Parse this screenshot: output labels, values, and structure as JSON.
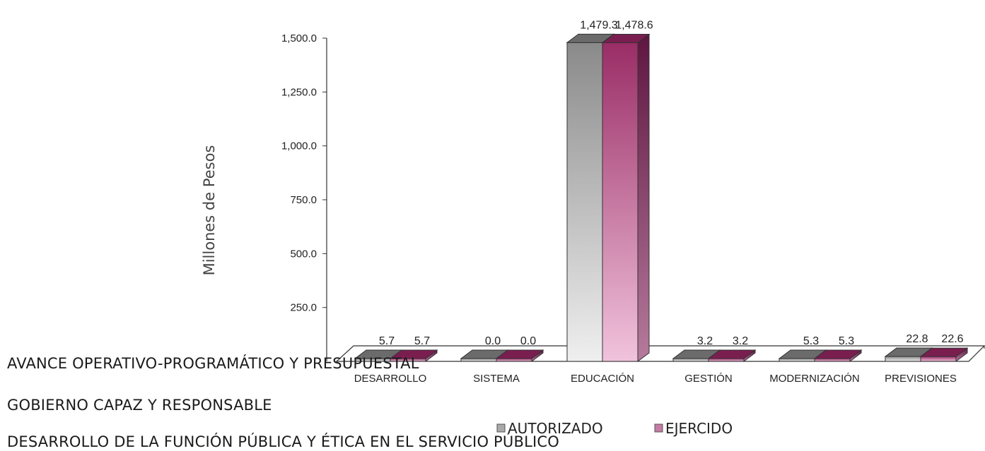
{
  "headings": {
    "line1": "AVANCE OPERATIVO-PROGRAMÁTICO Y PRESUPUESTAL",
    "line2": "GOBIERNO CAPAZ Y RESPONSABLE",
    "line3": "DESARROLLO DE LA FUNCIÓN PÚBLICA Y ÉTICA EN EL SERVICIO PÚBLICO"
  },
  "chart_data": {
    "type": "bar",
    "style": "3d-column",
    "ylabel": "Millones de Pesos",
    "ylim": [
      0,
      1500
    ],
    "yticks": [
      "250.0",
      "500.0",
      "750.0",
      "1,000.0",
      "1,250.0",
      "1,500.0"
    ],
    "ytick_values": [
      250,
      500,
      750,
      1000,
      1250,
      1500
    ],
    "categories": [
      "DESARROLLO",
      "SISTEMA",
      "EDUCACIÓN",
      "GESTIÓN",
      "MODERNIZACIÓN",
      "PREVISIONES"
    ],
    "series": [
      {
        "name": "AUTORIZADO",
        "color": "#8c8c8c",
        "values": [
          5.7,
          0.0,
          1479.3,
          3.2,
          5.3,
          22.8
        ],
        "labels": [
          "5.7",
          "0.0",
          "1,479.3",
          "3.2",
          "5.3",
          "22.8"
        ]
      },
      {
        "name": "EJERCIDO",
        "color": "#9b2f68",
        "values": [
          5.7,
          0.0,
          1478.6,
          3.2,
          5.3,
          22.6
        ],
        "labels": [
          "5.7",
          "0.0",
          "1,478.6",
          "3.2",
          "5.3",
          "22.6"
        ]
      }
    ],
    "legend_position": "bottom",
    "grid": false
  }
}
